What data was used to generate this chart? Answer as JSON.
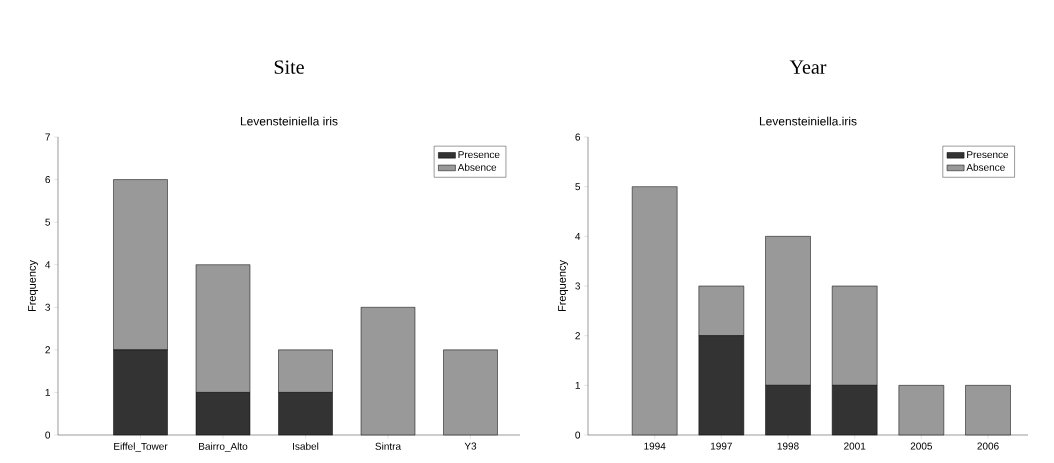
{
  "chart_data": [
    {
      "type": "bar",
      "title": "Site",
      "subtitle": "Levensteiniella iris",
      "ylabel": "Frequency",
      "categories": [
        "Eiffel_Tower",
        "Bairro_Alto",
        "Isabel",
        "Sintra",
        "Y3"
      ],
      "stacked": true,
      "series": [
        {
          "name": "Presence",
          "color": "#333333",
          "values": [
            2,
            1,
            1,
            0,
            0
          ]
        },
        {
          "name": "Absence",
          "color": "#999999",
          "values": [
            4,
            3,
            1,
            3,
            2
          ]
        }
      ],
      "ylim": [
        0,
        7
      ],
      "yticks": [
        0,
        1,
        2,
        3,
        4,
        5,
        6,
        7
      ],
      "legend": "top right"
    },
    {
      "type": "bar",
      "title": "Year",
      "subtitle": "Levensteiniella.iris",
      "ylabel": "Frequency",
      "categories": [
        "1994",
        "1997",
        "1998",
        "2001",
        "2005",
        "2006"
      ],
      "stacked": true,
      "series": [
        {
          "name": "Presence",
          "color": "#333333",
          "values": [
            0,
            2,
            1,
            1,
            0,
            0
          ]
        },
        {
          "name": "Absence",
          "color": "#999999",
          "values": [
            5,
            1,
            3,
            2,
            1,
            1
          ]
        }
      ],
      "ylim": [
        0,
        6
      ],
      "yticks": [
        0,
        1,
        2,
        3,
        4,
        5,
        6
      ],
      "legend": "top right"
    }
  ]
}
